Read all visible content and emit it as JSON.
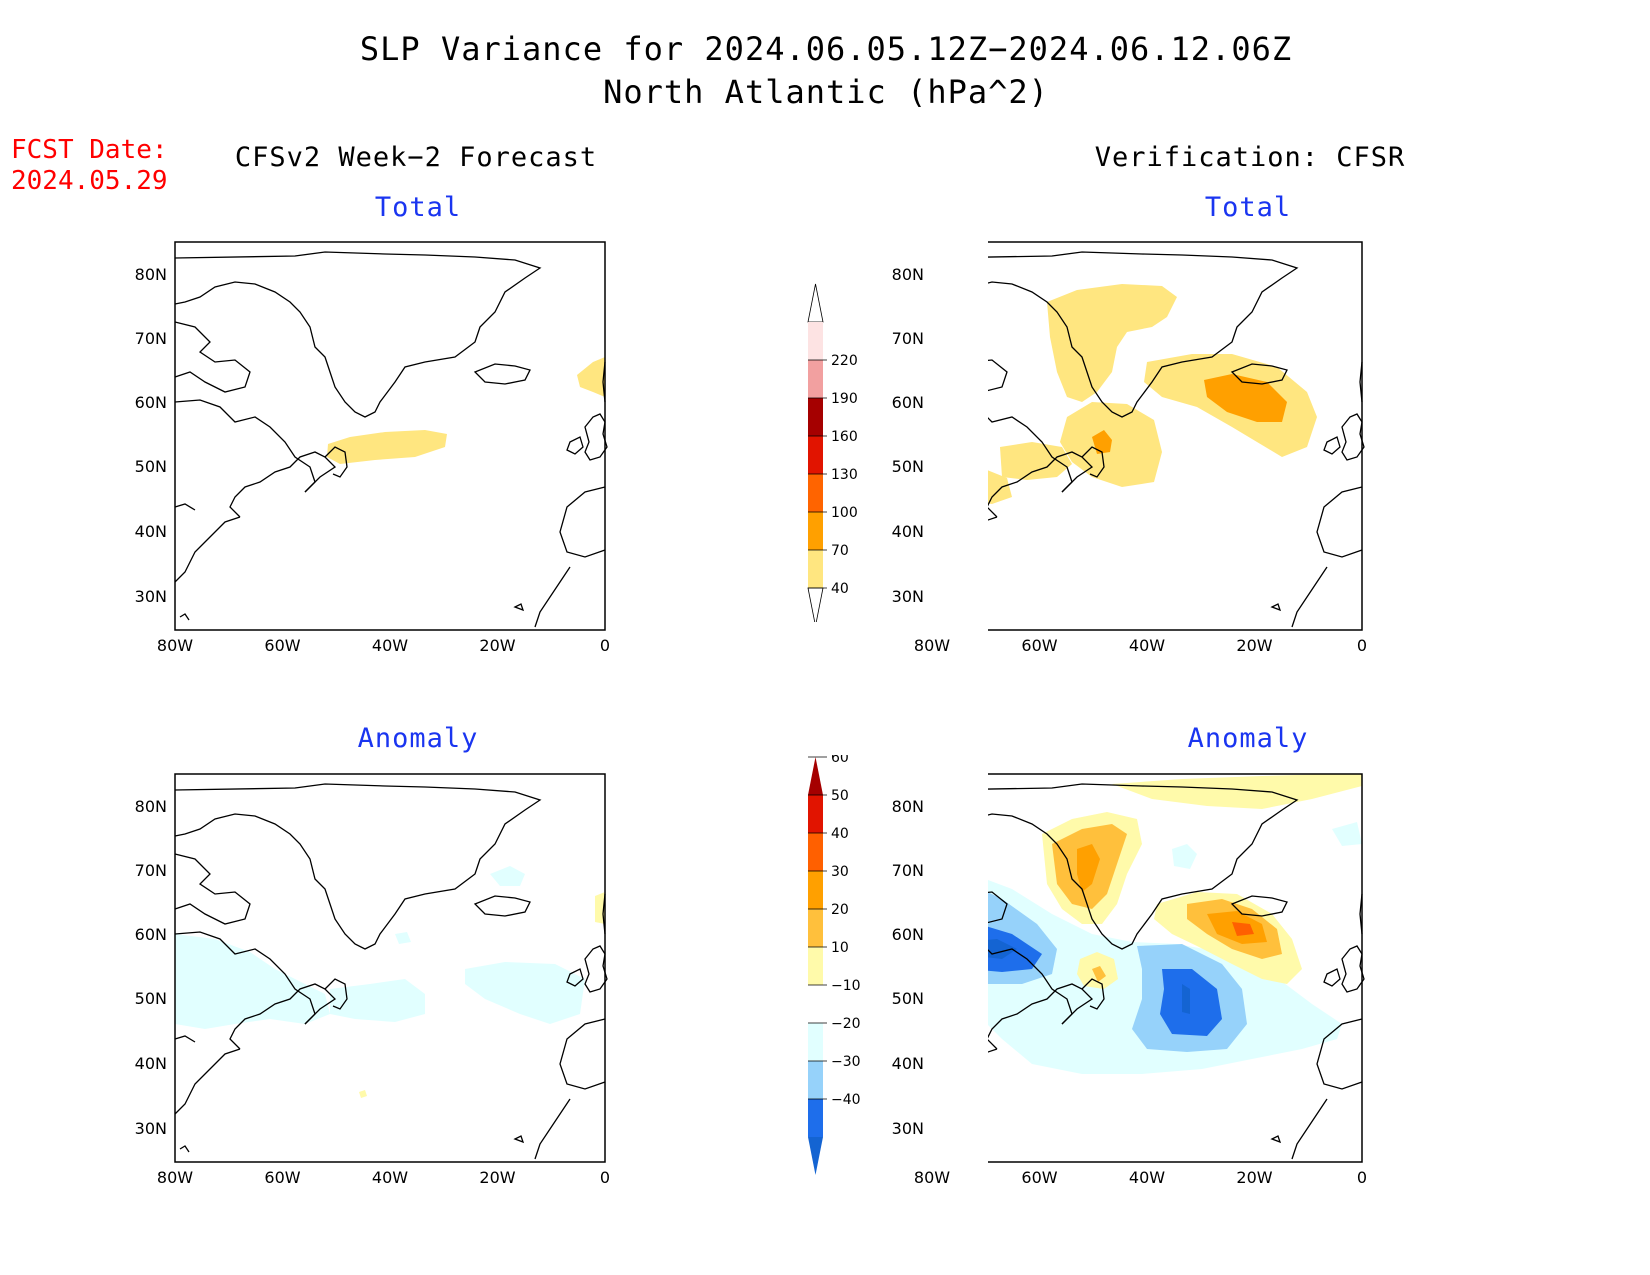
{
  "title": {
    "line1": "SLP Variance for 2024.06.05.12Z−2024.06.12.06Z",
    "line2": "North Atlantic (hPa^2)"
  },
  "forecast_date": {
    "label": "FCST Date:",
    "value": "2024.05.29"
  },
  "columns": {
    "left_title": "CFSv2 Week−2 Forecast",
    "right_title": "Verification: CFSR"
  },
  "panels": {
    "top_left_title": "Total",
    "top_right_title": "Total",
    "bottom_left_title": "Anomaly",
    "bottom_right_title": "Anomaly"
  },
  "axes": {
    "lon_ticks": [
      "80W",
      "60W",
      "40W",
      "20W",
      "0"
    ],
    "lat_ticks": [
      "80N",
      "70N",
      "60N",
      "50N",
      "40N",
      "30N"
    ]
  },
  "colorbars": {
    "total": {
      "levels": [
        "40",
        "70",
        "100",
        "130",
        "160",
        "190",
        "220"
      ],
      "colors": [
        "#ffe680",
        "#ffa000",
        "#ff6400",
        "#e11400",
        "#a50000",
        "#f2a0a0",
        "#fde3e3"
      ]
    },
    "anomaly": {
      "levels": [
        "−40",
        "−30",
        "−20",
        "−10",
        "10",
        "20",
        "30",
        "40",
        "50",
        "60"
      ],
      "colors": [
        "#1464d2",
        "#1e6eeb",
        "#96d2fa",
        "#e1ffff",
        "#ffffff",
        "#fffaaa",
        "#ffc03c",
        "#ffa000",
        "#ff6000",
        "#e11400",
        "#a50000"
      ]
    }
  },
  "shading_colors": {
    "yellow": "#ffe680",
    "orange": "#ffa000",
    "light_cyan": "#e1ffff",
    "light_blue": "#96d2fa",
    "mid_blue": "#1e6eeb",
    "dark_blue": "#1464d2",
    "pale_yellow": "#fffaaa",
    "light_orange": "#ffc03c",
    "red_orange": "#ff6000"
  }
}
